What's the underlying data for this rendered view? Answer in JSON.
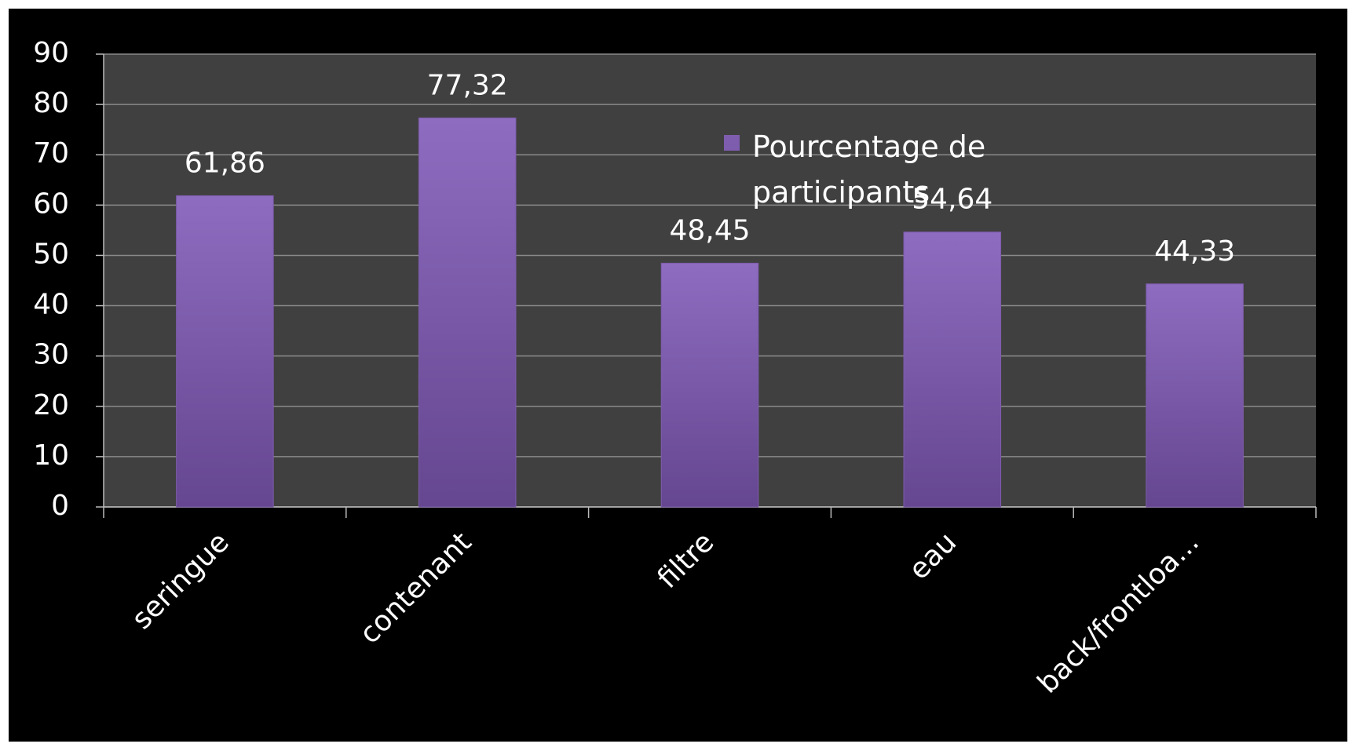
{
  "chart_data": {
    "type": "bar",
    "categories": [
      "seringue",
      "contenant",
      "filtre",
      "eau",
      "back/frontloa..."
    ],
    "series": [
      {
        "name": "Pourcentage de participants",
        "color": "#7e5cae",
        "values": [
          61.86,
          77.32,
          48.45,
          54.64,
          44.33
        ],
        "value_labels": [
          "61,86",
          "77,32",
          "48,45",
          "54,64",
          "44,33"
        ]
      }
    ],
    "ylim": [
      0,
      90
    ],
    "yticks": [
      0,
      10,
      20,
      30,
      40,
      50,
      60,
      70,
      80,
      90
    ],
    "grid": true,
    "legend": "top-right"
  }
}
